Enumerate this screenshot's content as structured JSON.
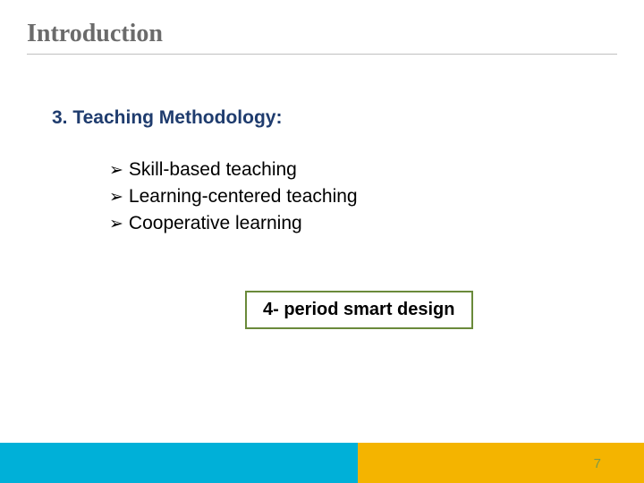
{
  "slide": {
    "title": "Introduction",
    "title_color": "#6b6b6b",
    "title_fontsize": 28,
    "underline_color": "#c0c0c0",
    "section_heading": "3. Teaching Methodology:",
    "section_heading_color": "#1f3c6e",
    "section_heading_fontsize": 21,
    "bullets": [
      {
        "marker": "➢",
        "text": "Skill-based teaching"
      },
      {
        "marker": "➢",
        "text": "Learning-centered teaching"
      },
      {
        "marker": "➢",
        "text": "Cooperative learning"
      }
    ],
    "bullet_fontsize": 21,
    "bullet_text_color": "#000000",
    "callout": {
      "text": "4- period smart design",
      "border_color": "#6a8a3a",
      "fontsize": 20,
      "text_color": "#000000"
    },
    "footer": {
      "left_color": "#00b0d8",
      "right_color": "#f4b400",
      "left_width": 400,
      "height": 45
    },
    "page_number": "7",
    "page_number_color": "#7a9a4a"
  }
}
